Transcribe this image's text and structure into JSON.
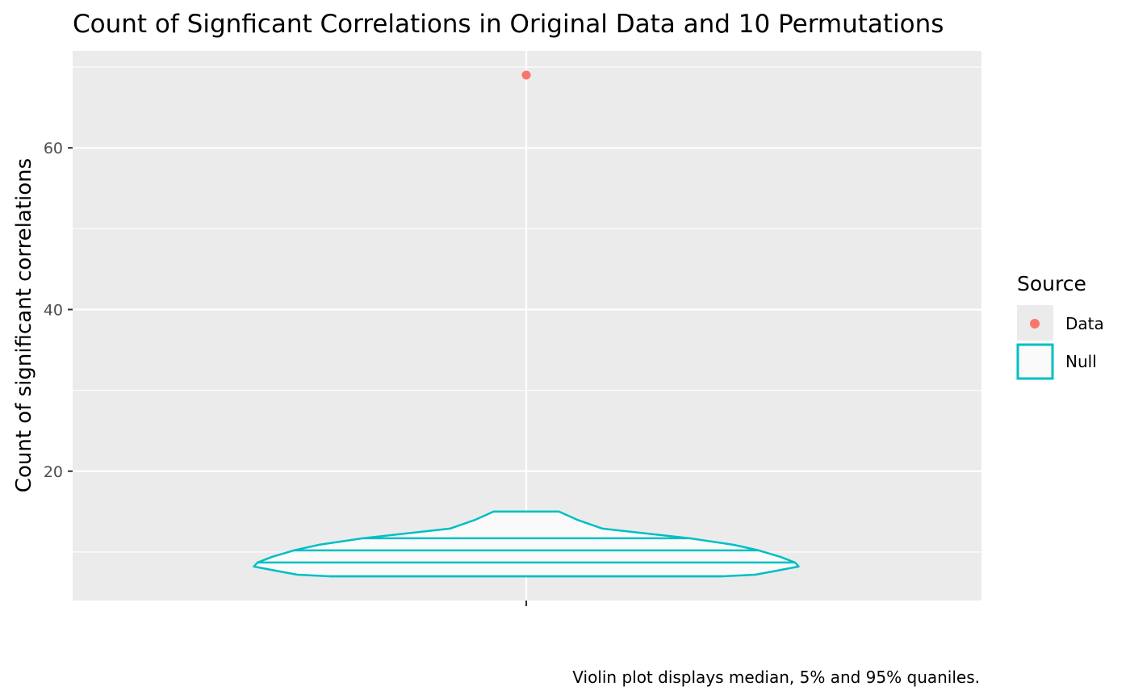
{
  "chart_data": {
    "type": "violin",
    "title": "Count of Signficant Correlations in Original Data and 10 Permutations",
    "xlabel": "",
    "ylabel": "Count of significant correlations",
    "caption": "Violin plot displays median, 5% and 95% quaniles.",
    "ylim": [
      4,
      72
    ],
    "y_ticks": [
      20,
      40,
      60
    ],
    "grid": true,
    "legend": {
      "title": "Source",
      "placement": "right",
      "entries": [
        {
          "label": "Data",
          "color": "#F8766D",
          "key": "point"
        },
        {
          "label": "Null",
          "color": "#00BFC4",
          "key": "box"
        }
      ]
    },
    "series": [
      {
        "name": "Data",
        "type": "point",
        "values": [
          69
        ],
        "color": "#F8766D"
      },
      {
        "name": "Null",
        "type": "violin",
        "color": "#00BFC4",
        "fill": "#FAFAFA",
        "density_profile": [
          {
            "y": 7.0,
            "half_width": 0.54
          },
          {
            "y": 7.2,
            "half_width": 0.63
          },
          {
            "y": 7.6,
            "half_width": 0.68
          },
          {
            "y": 8.2,
            "half_width": 0.75
          },
          {
            "y": 8.7,
            "half_width": 0.74
          },
          {
            "y": 9.4,
            "half_width": 0.7
          },
          {
            "y": 10.2,
            "half_width": 0.64
          },
          {
            "y": 10.9,
            "half_width": 0.57
          },
          {
            "y": 11.7,
            "half_width": 0.45
          },
          {
            "y": 12.9,
            "half_width": 0.21
          },
          {
            "y": 14.0,
            "half_width": 0.14
          },
          {
            "y": 15.0,
            "half_width": 0.09
          }
        ],
        "quantile_lines": [
          7.0,
          8.7,
          10.2,
          11.7
        ]
      }
    ]
  }
}
